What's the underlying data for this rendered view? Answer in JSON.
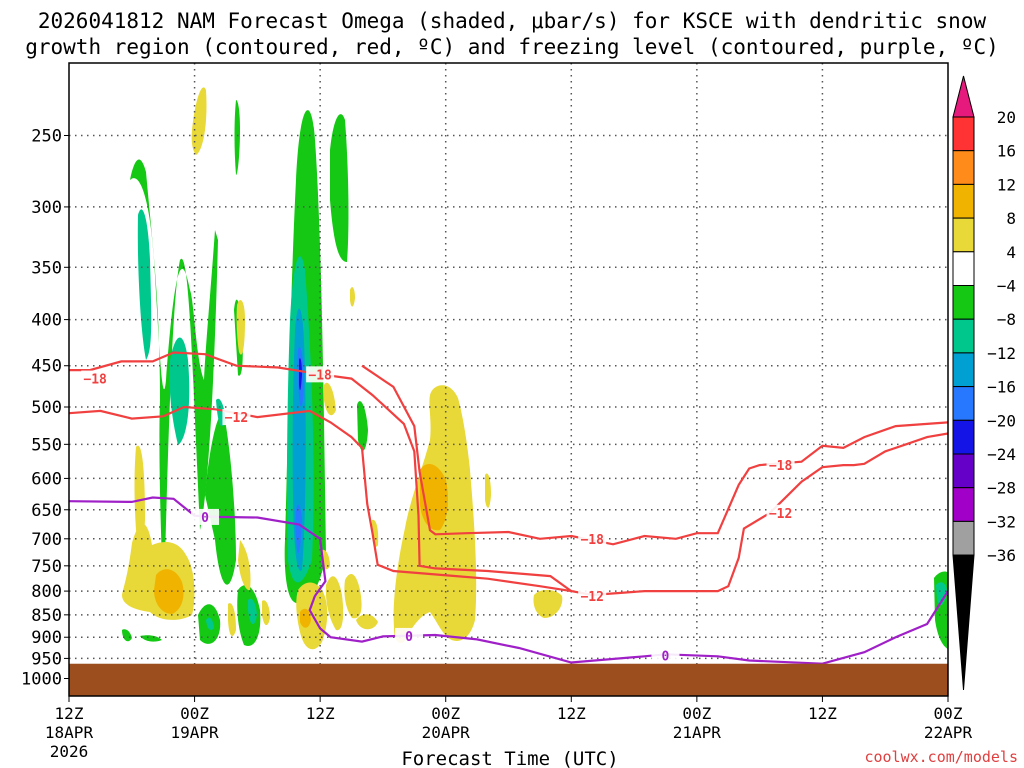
{
  "chart_data": {
    "type": "contour",
    "title_line1": "2026041812 NAM Forecast Omega (shaded, μbar/s) for KSCE with dendritic snow",
    "title_line2": "growth region (contoured, red, ºC) and freezing level (contoured, purple, ºC)",
    "xlabel": "Forecast Time (UTC)",
    "credit": "coolwx.com/models",
    "x_range_hours": [
      0,
      84
    ],
    "x_ticks": [
      {
        "hour": 0,
        "l1": "12Z",
        "l2": "18APR",
        "l3": "2026"
      },
      {
        "hour": 12,
        "l1": "00Z",
        "l2": "19APR",
        "l3": ""
      },
      {
        "hour": 24,
        "l1": "12Z",
        "l2": "",
        "l3": ""
      },
      {
        "hour": 36,
        "l1": "00Z",
        "l2": "20APR",
        "l3": ""
      },
      {
        "hour": 48,
        "l1": "12Z",
        "l2": "",
        "l3": ""
      },
      {
        "hour": 60,
        "l1": "00Z",
        "l2": "21APR",
        "l3": ""
      },
      {
        "hour": 72,
        "l1": "12Z",
        "l2": "",
        "l3": ""
      },
      {
        "hour": 84,
        "l1": "00Z",
        "l2": "22APR",
        "l3": ""
      }
    ],
    "y_pressure_hpa": [
      250,
      300,
      350,
      400,
      450,
      500,
      550,
      600,
      650,
      700,
      750,
      800,
      850,
      900,
      950,
      1000
    ],
    "y_range_hpa": [
      200,
      1015
    ],
    "ground_level_hpa": 963,
    "colorbar": {
      "labels": [
        "20",
        "16",
        "12",
        "8",
        "4",
        "−4",
        "−8",
        "−12",
        "−16",
        "−20",
        "−24",
        "−28",
        "−32",
        "−36"
      ],
      "colors": [
        "#ff3333",
        "#ff8c1a",
        "#f0b400",
        "#e8d838",
        "#ffffff",
        "#14c814",
        "#00c88c",
        "#00a0d2",
        "#2878ff",
        "#1414e6",
        "#6400c8",
        "#a000c8",
        "#a0a0a0"
      ],
      "top_arrow_color": "#e6197d",
      "bottom_arrow_color": "#000000"
    },
    "series": [
      {
        "name": "-18C isotherm",
        "color": "#f04040",
        "label": "−18",
        "points": [
          [
            0,
            455
          ],
          [
            2,
            455
          ],
          [
            5,
            445
          ],
          [
            8,
            445
          ],
          [
            10,
            435
          ],
          [
            13,
            437
          ],
          [
            16,
            450
          ],
          [
            20,
            452
          ],
          [
            24,
            460
          ],
          [
            27,
            465
          ],
          [
            29,
            485
          ],
          [
            32,
            522
          ],
          [
            33,
            560
          ],
          [
            33.4,
            660
          ],
          [
            33.5,
            750
          ],
          [
            35,
            755
          ],
          [
            40,
            760
          ],
          [
            46,
            770
          ],
          [
            48,
            800
          ]
        ]
      },
      {
        "name": "-18C isotherm (east)",
        "color": "#f04040",
        "label": "−18",
        "points": [
          [
            28,
            450
          ],
          [
            31,
            475
          ],
          [
            33,
            525
          ],
          [
            33.5,
            590
          ],
          [
            34.5,
            685
          ],
          [
            35,
            692
          ],
          [
            38,
            690
          ],
          [
            42,
            688
          ],
          [
            45,
            700
          ],
          [
            48,
            695
          ],
          [
            52,
            710
          ],
          [
            55,
            695
          ],
          [
            58,
            700
          ],
          [
            60,
            690
          ],
          [
            62,
            690
          ],
          [
            64,
            610
          ],
          [
            65,
            585
          ],
          [
            66,
            580
          ],
          [
            70,
            575
          ],
          [
            72,
            552
          ],
          [
            74,
            555
          ],
          [
            76,
            540
          ],
          [
            79,
            525
          ],
          [
            84,
            520
          ]
        ]
      },
      {
        "name": "-12C isotherm",
        "color": "#f04040",
        "label": "−12",
        "points": [
          [
            0,
            508
          ],
          [
            3,
            505
          ],
          [
            6,
            515
          ],
          [
            9,
            512
          ],
          [
            11,
            500
          ],
          [
            14,
            503
          ],
          [
            18,
            513
          ],
          [
            23,
            505
          ],
          [
            25,
            520
          ],
          [
            27,
            540
          ],
          [
            28,
            555
          ],
          [
            28.5,
            640
          ],
          [
            29,
            690
          ],
          [
            29.5,
            748
          ],
          [
            31,
            760
          ],
          [
            37,
            770
          ],
          [
            40,
            775
          ],
          [
            45,
            790
          ],
          [
            48,
            800
          ],
          [
            50,
            808
          ],
          [
            55,
            800
          ],
          [
            62,
            800
          ],
          [
            63,
            790
          ],
          [
            64,
            735
          ],
          [
            64.5,
            682
          ],
          [
            67,
            655
          ],
          [
            70,
            605
          ],
          [
            72,
            583
          ],
          [
            74,
            580
          ],
          [
            75,
            580
          ],
          [
            76,
            578
          ],
          [
            78,
            560
          ],
          [
            80,
            550
          ],
          [
            82,
            540
          ],
          [
            84,
            535
          ]
        ]
      },
      {
        "name": "0C freezing level",
        "color": "#a020c8",
        "label": "0",
        "points": [
          [
            0,
            636
          ],
          [
            6,
            637
          ],
          [
            8,
            630
          ],
          [
            10,
            632
          ],
          [
            12,
            660
          ],
          [
            14,
            662
          ],
          [
            18,
            663
          ],
          [
            22,
            675
          ],
          [
            24,
            700
          ],
          [
            24.5,
            780
          ],
          [
            23.5,
            810
          ],
          [
            23,
            840
          ],
          [
            24,
            880
          ],
          [
            25,
            900
          ],
          [
            28,
            910
          ],
          [
            30,
            898
          ],
          [
            35,
            895
          ],
          [
            39,
            905
          ],
          [
            43,
            925
          ],
          [
            48,
            960
          ],
          [
            55,
            945
          ],
          [
            57,
            940
          ],
          [
            62,
            945
          ],
          [
            65,
            955
          ],
          [
            72,
            963
          ],
          [
            76,
            935
          ],
          [
            79,
            900
          ],
          [
            82,
            870
          ],
          [
            84,
            800
          ]
        ]
      }
    ]
  }
}
